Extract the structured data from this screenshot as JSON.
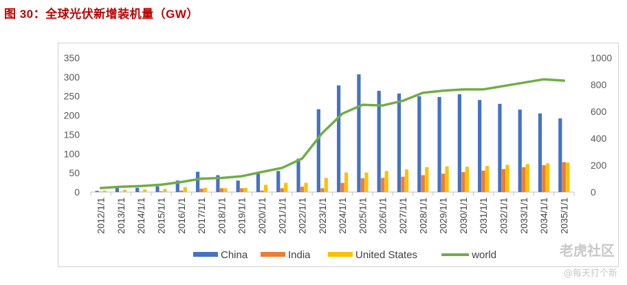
{
  "figure_title": "图 30：全球光伏新增装机量（GW）",
  "watermark": {
    "main": "老虎社区",
    "sub": "@每天打个新"
  },
  "chart_data": {
    "type": "bar",
    "title": "",
    "categories": [
      "2012/1/1",
      "2013/1/1",
      "2014/1/1",
      "2015/1/1",
      "2016/1/1",
      "2017/1/1",
      "2018/1/1",
      "2019/1/1",
      "2020/1/1",
      "2021/1/1",
      "2022/1/1",
      "2023/1/1",
      "2024/1/1",
      "2025/1/1",
      "2026/1/1",
      "2027/1/1",
      "2028/1/1",
      "2029/1/1",
      "2030/1/1",
      "2031/1/1",
      "2032/1/1",
      "2033/1/1",
      "2034/1/1",
      "2035/1/1"
    ],
    "series": [
      {
        "name": "China",
        "type": "bar",
        "axis": "left",
        "color": "#4472c4",
        "values": [
          3,
          11,
          11,
          15,
          30,
          53,
          44,
          30,
          48,
          55,
          87,
          216,
          278,
          307,
          264,
          257,
          250,
          248,
          255,
          240,
          230,
          215,
          205,
          192
        ]
      },
      {
        "name": "India",
        "type": "bar",
        "axis": "left",
        "color": "#ed7d31",
        "values": [
          1,
          1,
          1,
          2,
          4,
          9,
          10,
          10,
          4,
          10,
          14,
          10,
          24,
          36,
          37,
          40,
          44,
          48,
          52,
          56,
          60,
          65,
          70,
          78
        ]
      },
      {
        "name": "United States",
        "type": "bar",
        "axis": "left",
        "color": "#ffc000",
        "values": [
          4,
          6,
          7,
          8,
          13,
          11,
          10,
          11,
          19,
          24,
          24,
          37,
          51,
          51,
          55,
          59,
          65,
          67,
          66,
          68,
          71,
          73,
          75,
          77
        ]
      },
      {
        "name": "world",
        "type": "line",
        "axis": "right",
        "color": "#70ad47",
        "values": [
          30,
          40,
          45,
          55,
          75,
          100,
          105,
          118,
          150,
          180,
          250,
          440,
          585,
          650,
          645,
          680,
          740,
          755,
          765,
          765,
          790,
          815,
          840,
          830
        ]
      }
    ],
    "y_left": {
      "min": 0,
      "max": 350,
      "ticks": [
        0,
        50,
        100,
        150,
        200,
        250,
        300,
        350
      ]
    },
    "y_right": {
      "min": 0,
      "max": 1000,
      "ticks": [
        0,
        200,
        400,
        600,
        800,
        1000
      ]
    },
    "xlabel": "",
    "ylabel": "",
    "grid": false,
    "legend": "bottom"
  }
}
